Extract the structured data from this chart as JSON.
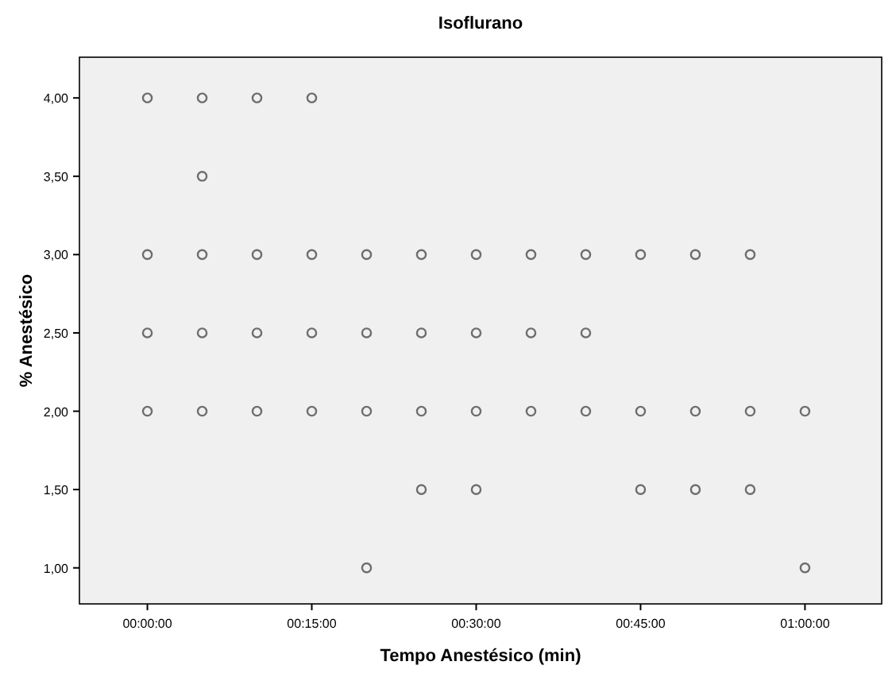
{
  "chart_data": {
    "type": "scatter",
    "title": "Isoflurano",
    "xlabel": "Tempo Anestésico (min)",
    "ylabel": "% Anestésico",
    "x": [
      0,
      0,
      0,
      0,
      5,
      5,
      5,
      5,
      5,
      10,
      10,
      10,
      10,
      15,
      15,
      15,
      15,
      20,
      20,
      20,
      20,
      25,
      25,
      25,
      25,
      30,
      30,
      30,
      30,
      35,
      35,
      35,
      40,
      40,
      40,
      45,
      45,
      45,
      50,
      50,
      50,
      55,
      55,
      55,
      60,
      60
    ],
    "series": [
      {
        "color": "#6e6e6e",
        "values": [
          4,
          3,
          2.5,
          2,
          4,
          3.5,
          3,
          2.5,
          2,
          4,
          3,
          2.5,
          2,
          4,
          3,
          2.5,
          2,
          3,
          2.5,
          2,
          1,
          3,
          2.5,
          2,
          1.5,
          3,
          2.5,
          2,
          1.5,
          3,
          2.5,
          2,
          3,
          2.5,
          2,
          3,
          2,
          1.5,
          3,
          2,
          1.5,
          3,
          2,
          1.5,
          2,
          1
        ]
      }
    ],
    "xlim": [
      -6.2,
      67
    ],
    "ylim": [
      0.77,
      4.26
    ],
    "xticks": [
      {
        "value": 0,
        "label": "00:00:00"
      },
      {
        "value": 15,
        "label": "00:15:00"
      },
      {
        "value": 30,
        "label": "00:30:00"
      },
      {
        "value": 45,
        "label": "00:45:00"
      },
      {
        "value": 60,
        "label": "01:00:00"
      }
    ],
    "yticks": [
      {
        "value": 1,
        "label": "1,00"
      },
      {
        "value": 1.5,
        "label": "1,50"
      },
      {
        "value": 2,
        "label": "2,00"
      },
      {
        "value": 2.5,
        "label": "2,50"
      },
      {
        "value": 3,
        "label": "3,00"
      },
      {
        "value": 3.5,
        "label": "3,50"
      },
      {
        "value": 4,
        "label": "4,00"
      }
    ],
    "marker": "circle",
    "grid": false
  }
}
